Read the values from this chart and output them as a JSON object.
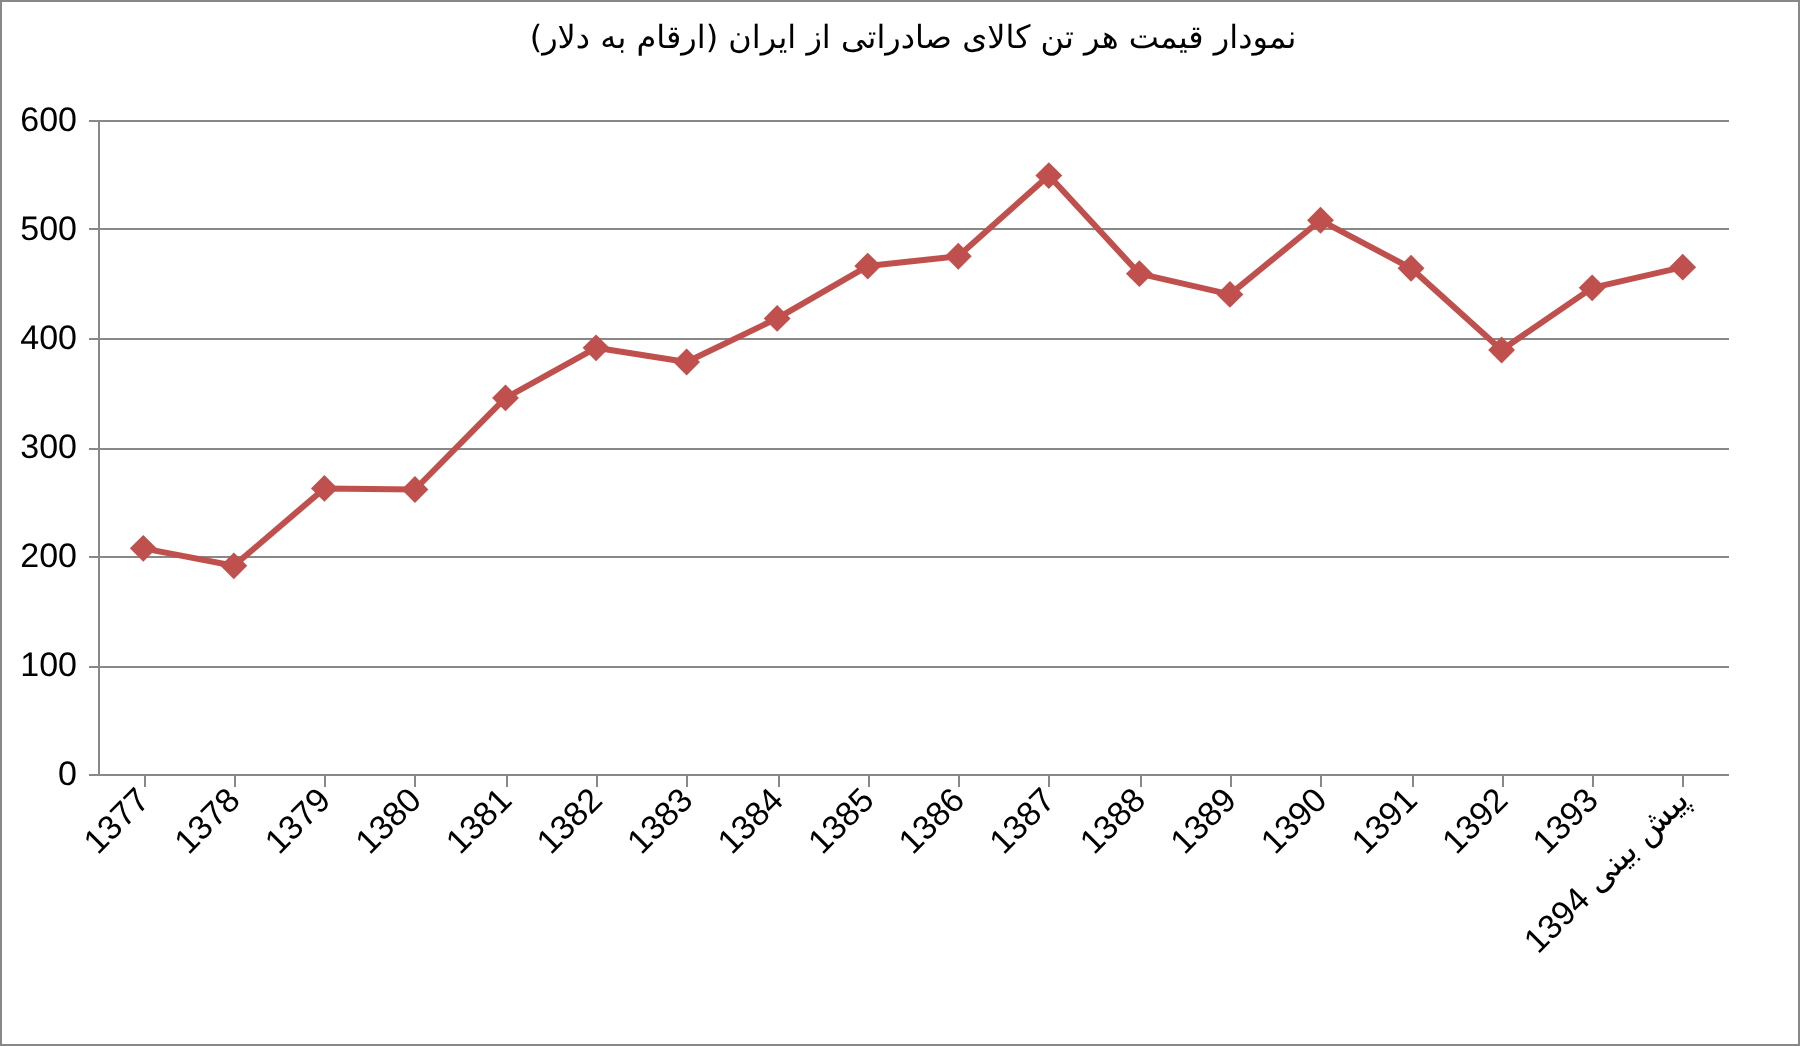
{
  "chart_data": {
    "type": "line",
    "title": "نمودار قیمت هر تن کالای صادراتی از ایران (ارقام به دلار)",
    "categories": [
      "1377",
      "1378",
      "1379",
      "1380",
      "1381",
      "1382",
      "1383",
      "1384",
      "1385",
      "1386",
      "1387",
      "1388",
      "1389",
      "1390",
      "1391",
      "1392",
      "1393",
      "پیش بینی 1394"
    ],
    "series": [
      {
        "color": "#c0504d",
        "values": [
          207,
          191,
          262,
          261,
          345,
          391,
          378,
          418,
          466,
          475,
          549,
          459,
          440,
          508,
          464,
          389,
          446,
          465
        ]
      }
    ],
    "ylim": [
      0,
      600
    ],
    "yticks": [
      0,
      100,
      200,
      300,
      400,
      500,
      600
    ],
    "grid": "y",
    "marker": "diamond",
    "line_style": "solid"
  }
}
